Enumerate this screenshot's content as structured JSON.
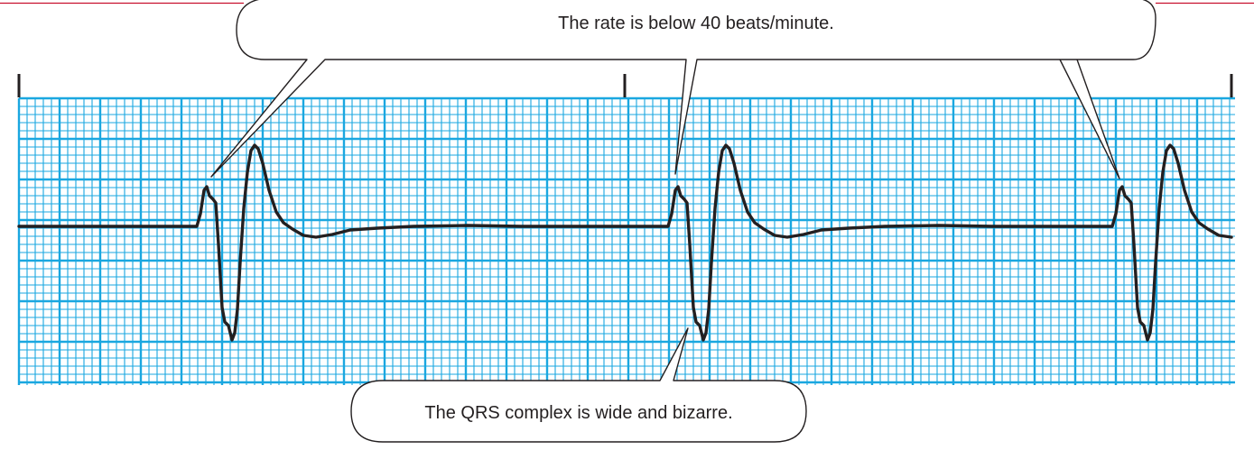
{
  "callouts": {
    "top": "The rate is below 40 beats/minute.",
    "bottom": "The QRS complex is wide and bizarre."
  },
  "colors": {
    "grid": "#1aa7e0",
    "trace": "#231f20",
    "accent_line": "#c8102e",
    "bubble_fill": "#ffffff",
    "bubble_stroke": "#231f20"
  },
  "icons": {
    "strip_markers": "vertical-tick-marks"
  }
}
